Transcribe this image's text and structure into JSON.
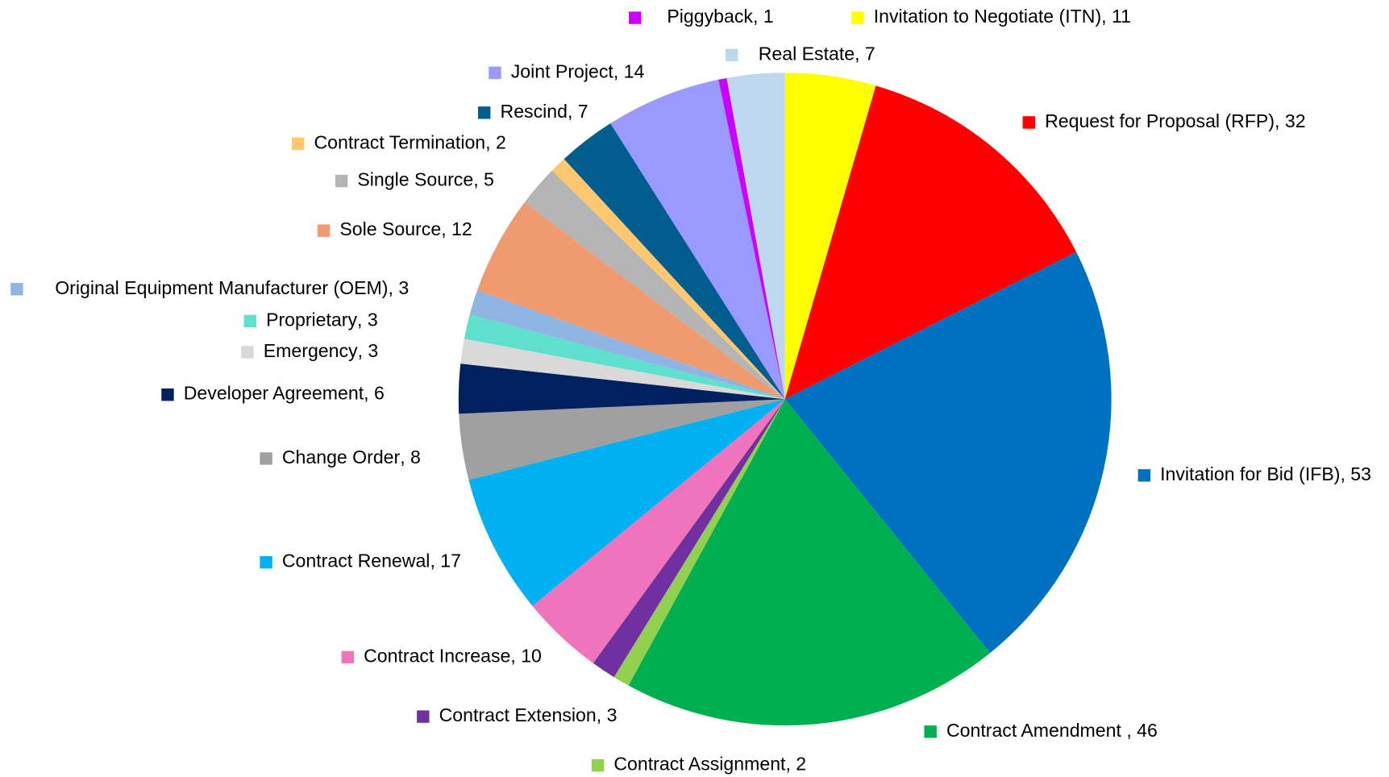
{
  "chart_data": {
    "type": "pie",
    "categories": [
      "Invitation to Negotiate (ITN)",
      "Request for Proposal (RFP)",
      "Invitation for Bid (IFB)",
      "Contract Amendment ",
      "Contract Assignment",
      "Contract Extension",
      "Contract Increase",
      "Contract Renewal",
      "Change Order",
      "Developer Agreement",
      "Emergency",
      "Proprietary",
      "Original Equipment Manufacturer (OEM)",
      "Sole Source",
      "Single Source",
      "Contract Termination",
      "Rescind",
      "Joint Project",
      "Piggyback",
      "Real Estate"
    ],
    "values": [
      11,
      32,
      53,
      46,
      2,
      3,
      10,
      17,
      8,
      6,
      3,
      3,
      3,
      12,
      5,
      2,
      7,
      14,
      1,
      7
    ],
    "value_labels": [
      ", 11",
      ", 32",
      ", 53",
      ", 46",
      ", 2",
      ", 3",
      ", 10",
      ", 17",
      ", 8",
      ", 6",
      ", 3",
      ", 3",
      ", 3",
      ", 12",
      ", 5",
      ", 2",
      ", 7",
      ", 14",
      ", 1",
      ", 7"
    ],
    "colors": [
      "#ffff00",
      "#ff0000",
      "#0070c0",
      "#00b050",
      "#92d050",
      "#7030a0",
      "#f074bd",
      "#00b0f0",
      "#a0a0a0",
      "#002060",
      "#d9d9d9",
      "#5fe0cf",
      "#8eb4e3",
      "#f09a70",
      "#b4b4b4",
      "#ffc870",
      "#005e8f",
      "#9999ff",
      "#cc00ff",
      "#bdd7ee"
    ]
  }
}
